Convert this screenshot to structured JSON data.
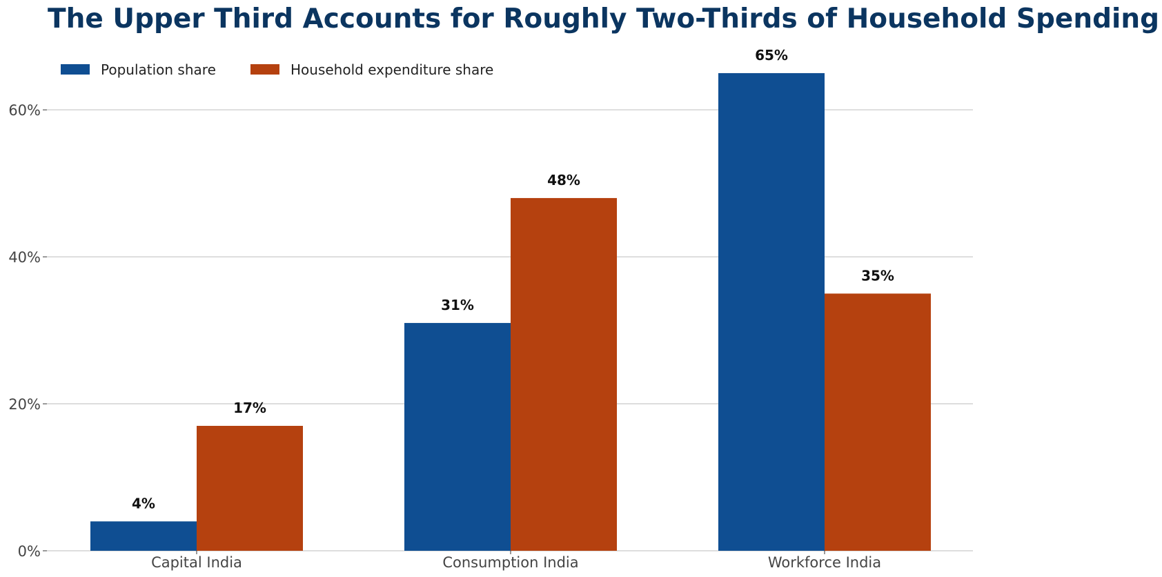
{
  "chart_data": {
    "type": "bar",
    "title": "The Upper Third Accounts for Roughly Two-Thirds of Household Spending",
    "xlabel": "",
    "ylabel": "",
    "categories": [
      "Capital India",
      "Consumption India",
      "Workforce India"
    ],
    "series": [
      {
        "name": "Population share",
        "values": [
          4,
          31,
          65
        ],
        "labels": [
          "4%",
          "31%",
          "65%"
        ],
        "color": "#0F4E92"
      },
      {
        "name": "Household expenditure share",
        "values": [
          17,
          48,
          35
        ],
        "labels": [
          "17%",
          "48%",
          "35%"
        ],
        "color": "#B5410F"
      }
    ],
    "ylim": [
      0,
      68
    ],
    "yticks": [
      0,
      20,
      40,
      60
    ],
    "ytick_labels": [
      "0%",
      "20%",
      "40%",
      "60%"
    ],
    "grid": true,
    "legend_position": "top-left",
    "title_color": "#0B3560",
    "grid_color": "#DDDDDD"
  }
}
